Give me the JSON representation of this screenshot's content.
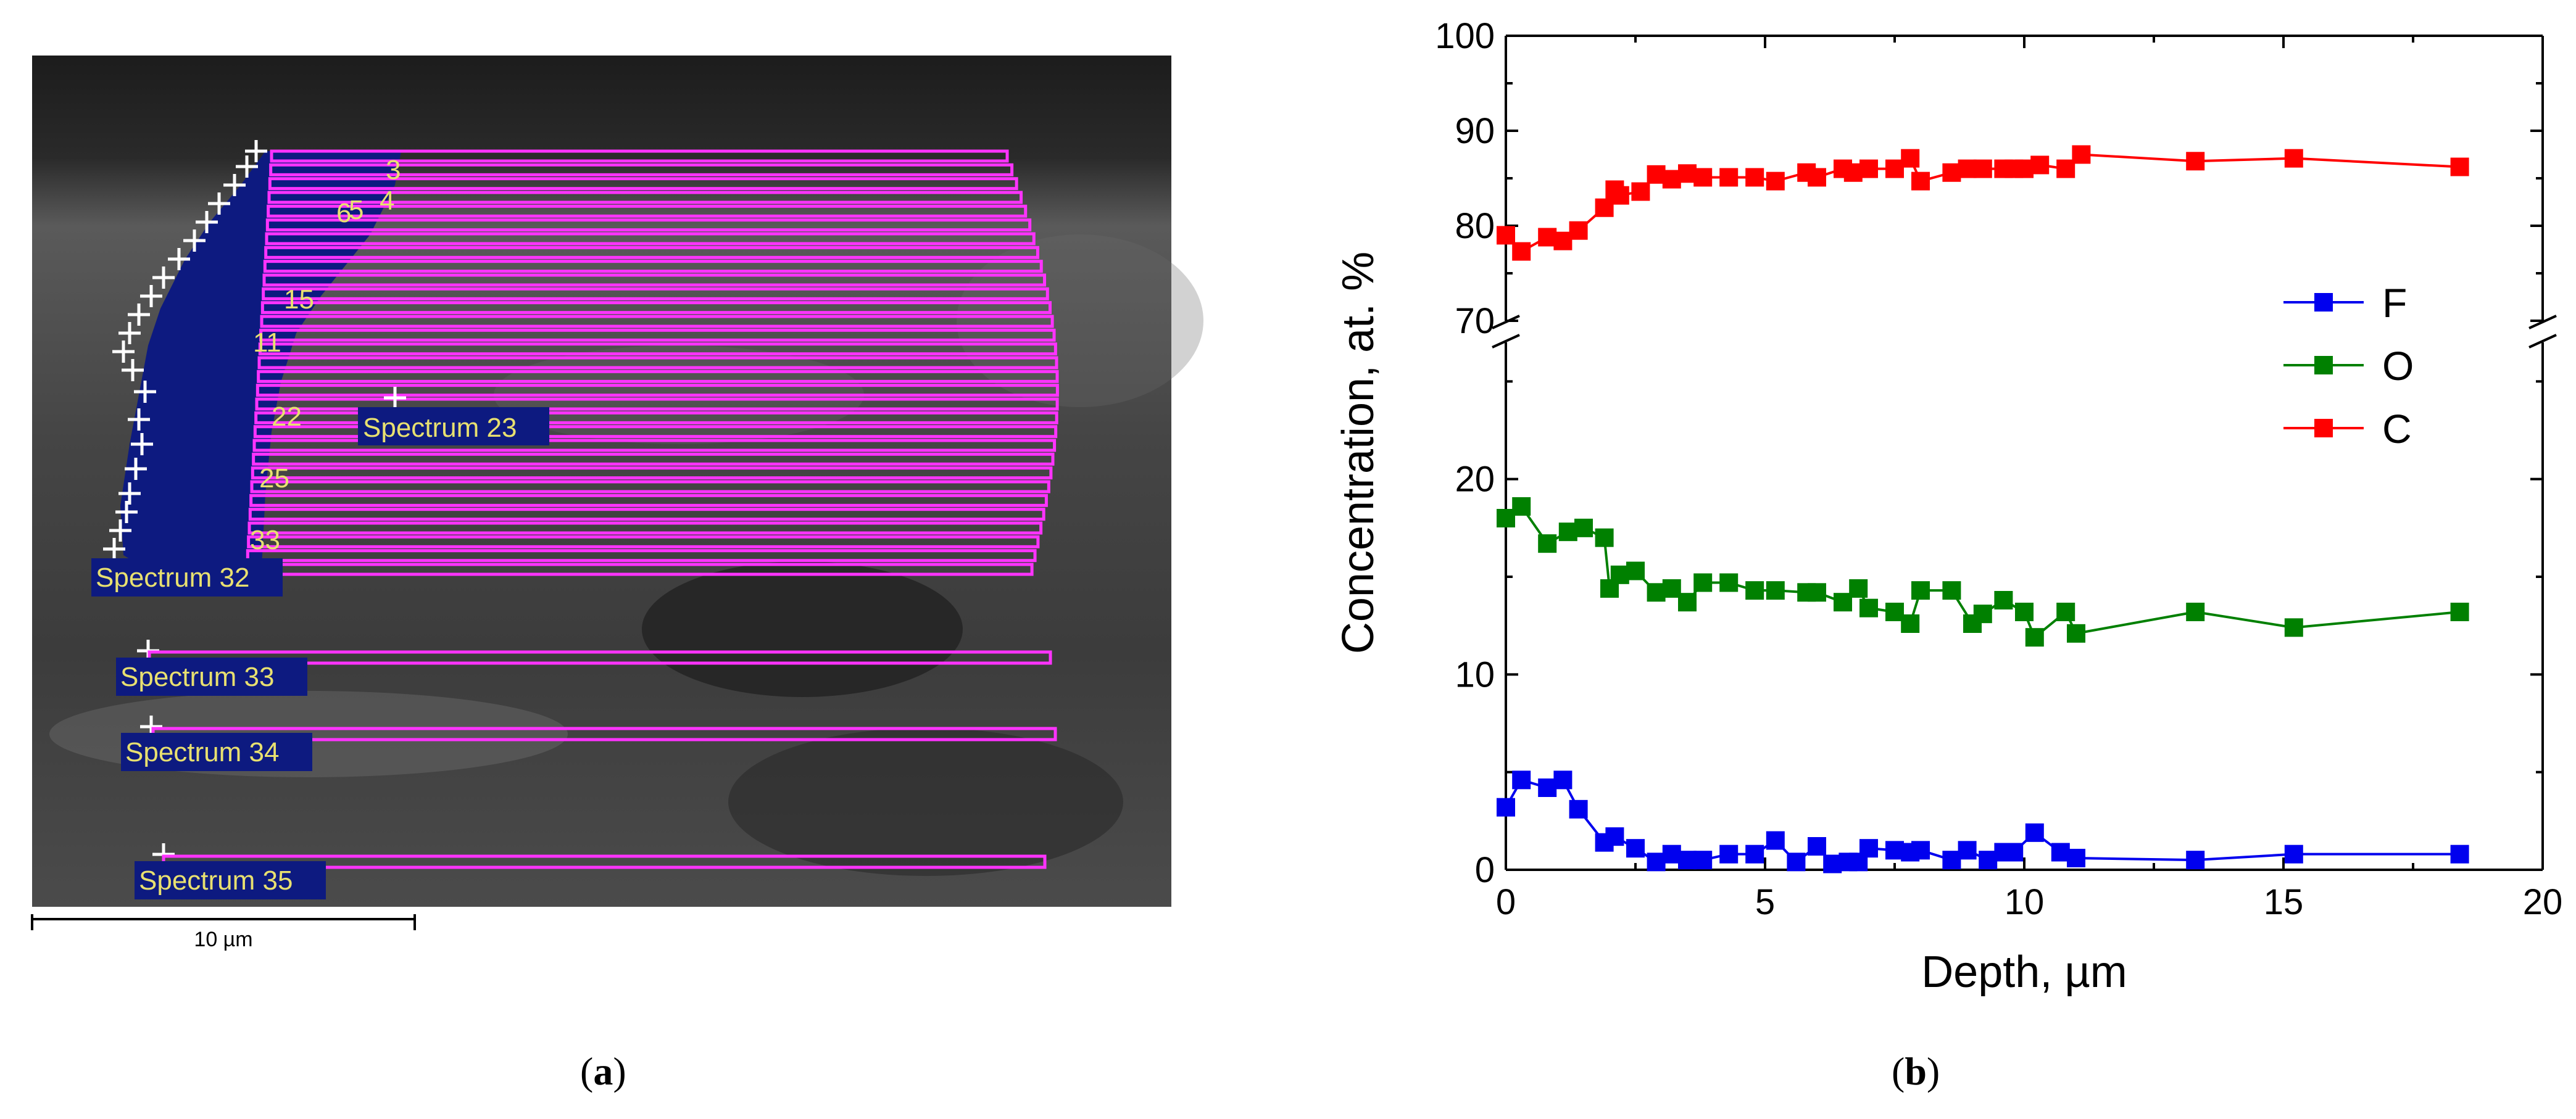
{
  "panel_a": {
    "spectrum_labels": [
      "Spectrum 23",
      "Spectrum 32",
      "Spectrum 33",
      "Spectrum 34",
      "Spectrum 35"
    ],
    "crowded_labels": [
      "3",
      "4",
      "5",
      "6",
      "15",
      "11",
      "22",
      "25",
      "33"
    ],
    "scale_bar_label": "10 µm",
    "caption_letter": "a",
    "colors": {
      "sem_background": "#3a3a3a",
      "region_fill": "#0d1a80",
      "scan_line": "#ff33ff",
      "label_text": "#e8e070"
    }
  },
  "panel_b": {
    "caption_letter": "b"
  },
  "chart_data": {
    "type": "line",
    "title": "",
    "xlabel": "Depth, µm",
    "ylabel": "Concentration, at. %",
    "xlim": [
      0,
      20
    ],
    "x_ticks": [
      "0",
      "5",
      "10",
      "15",
      "20"
    ],
    "y_axis_broken": true,
    "ylim_lower": [
      0,
      27
    ],
    "ylim_upper": [
      70,
      100
    ],
    "y_ticks_lower": [
      "0",
      "10",
      "20"
    ],
    "y_ticks_upper": [
      "70",
      "80",
      "90",
      "100"
    ],
    "legend": {
      "position": "right",
      "entries": [
        "F",
        "O",
        "C"
      ]
    },
    "series": [
      {
        "name": "F",
        "color": "#0000ee",
        "x": [
          0,
          0.3,
          0.8,
          1.1,
          1.4,
          1.9,
          2.1,
          2.5,
          2.9,
          3.2,
          3.5,
          3.8,
          4.3,
          4.8,
          5.2,
          5.6,
          6.0,
          6.3,
          6.6,
          6.8,
          7.0,
          7.5,
          7.8,
          8.0,
          8.6,
          8.9,
          9.3,
          9.6,
          9.8,
          10.2,
          10.7,
          11.0,
          13.3,
          15.2,
          18.4
        ],
        "y": [
          3.2,
          4.6,
          4.2,
          4.6,
          3.1,
          1.4,
          1.7,
          1.1,
          0.4,
          0.8,
          0.5,
          0.5,
          0.8,
          0.8,
          1.5,
          0.4,
          1.2,
          0.3,
          0.4,
          0.4,
          1.1,
          1.0,
          0.9,
          1.0,
          0.5,
          1.0,
          0.5,
          0.9,
          0.9,
          1.9,
          0.9,
          0.6,
          0.5,
          0.8,
          0.8
        ]
      },
      {
        "name": "O",
        "color": "#008000",
        "x": [
          0,
          0.3,
          0.8,
          1.2,
          1.5,
          1.9,
          2.0,
          2.2,
          2.5,
          2.9,
          3.2,
          3.5,
          3.8,
          4.3,
          4.8,
          5.2,
          5.8,
          6.0,
          6.5,
          6.8,
          7.0,
          7.5,
          7.8,
          8.0,
          8.6,
          9.0,
          9.2,
          9.6,
          10.0,
          10.2,
          10.8,
          11.0,
          13.3,
          15.2,
          18.4
        ],
        "y": [
          18.0,
          18.6,
          16.7,
          17.3,
          17.5,
          17.0,
          14.4,
          15.1,
          15.3,
          14.2,
          14.4,
          13.7,
          14.7,
          14.7,
          14.3,
          14.3,
          14.2,
          14.2,
          13.7,
          14.4,
          13.4,
          13.2,
          12.6,
          14.3,
          14.3,
          12.6,
          13.1,
          13.8,
          13.2,
          11.9,
          13.2,
          12.1,
          13.2,
          12.4,
          13.2
        ]
      },
      {
        "name": "C",
        "color": "#ff0000",
        "x": [
          0,
          0.3,
          0.8,
          1.1,
          1.4,
          1.9,
          2.1,
          2.2,
          2.6,
          2.9,
          3.2,
          3.5,
          3.8,
          4.3,
          4.8,
          5.2,
          5.8,
          6.0,
          6.5,
          6.7,
          7.0,
          7.5,
          7.8,
          8.0,
          8.6,
          8.9,
          9.2,
          9.6,
          9.8,
          10.0,
          10.3,
          10.8,
          11.1,
          13.3,
          15.2,
          18.4
        ],
        "y": [
          79.0,
          77.3,
          78.8,
          78.4,
          79.5,
          81.9,
          83.8,
          83.2,
          83.6,
          85.4,
          84.9,
          85.5,
          85.1,
          85.1,
          85.1,
          84.7,
          85.6,
          85.1,
          86.0,
          85.6,
          86.0,
          86.0,
          87.1,
          84.7,
          85.6,
          86.0,
          86.0,
          86.0,
          86.0,
          86.0,
          86.4,
          86.0,
          87.5,
          86.8,
          87.1,
          86.2
        ]
      }
    ]
  }
}
